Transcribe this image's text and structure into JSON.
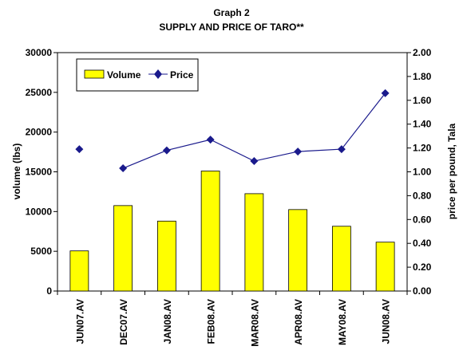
{
  "chart_data": {
    "type": "bar",
    "title": "Graph 2",
    "subtitle": "SUPPLY AND PRICE OF TARO**",
    "categories": [
      "JUN07.AV",
      "DEC07.AV",
      "JAN08.AV",
      "FEB08.AV",
      "MAR08.AV",
      "APR08.AV",
      "MAY08.AV",
      "JUN08.AV"
    ],
    "series": [
      {
        "name": "Volume",
        "type": "bar",
        "axis": "left",
        "values": [
          5050,
          10750,
          8800,
          15100,
          12250,
          10250,
          8150,
          6150
        ]
      },
      {
        "name": "Price",
        "type": "line",
        "axis": "right",
        "values": [
          1.19,
          1.03,
          1.18,
          1.27,
          1.09,
          1.17,
          1.19,
          1.66
        ]
      }
    ],
    "xlabel": "",
    "ylabel": "volume (lbs)",
    "y2label": "price per pound, Tala",
    "ylim": [
      0,
      30000
    ],
    "y2lim": [
      0,
      2.0
    ],
    "yticks": [
      "0",
      "5000",
      "10000",
      "15000",
      "20000",
      "25000",
      "30000"
    ],
    "y2ticks": [
      "0.00",
      "0.20",
      "0.40",
      "0.60",
      "0.80",
      "1.00",
      "1.20",
      "1.40",
      "1.60",
      "1.80",
      "2.00"
    ],
    "grid": false,
    "legend": "top-left",
    "colors": {
      "bar": "#ffff00",
      "bar_stroke": "#000000",
      "line": "#1a1a8c",
      "marker": "#1a1a8c"
    }
  }
}
